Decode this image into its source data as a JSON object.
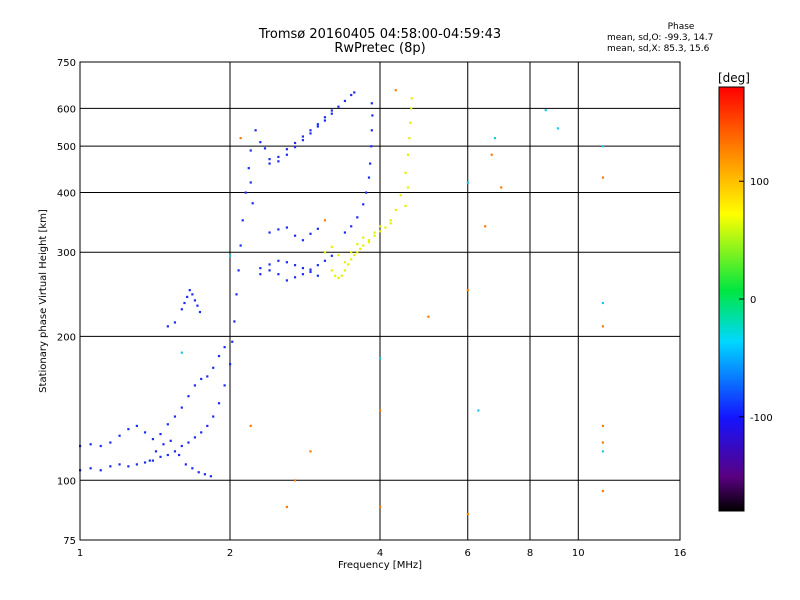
{
  "header": {
    "title": "Tromsø 20160405 04:58:00-04:59:43",
    "subtitle": "RwPretec (8p)",
    "phase_label": "Phase",
    "phase_o": "mean, sd,O: -99.3, 14.7",
    "phase_x": "mean, sd,X:  85.3, 15.6"
  },
  "chart_data": {
    "type": "scatter",
    "xlabel": "Frequency [MHz]",
    "ylabel": "Stationary phase Virtual Height [km]",
    "xscale": "log",
    "yscale": "log",
    "xlim": [
      1,
      16
    ],
    "ylim": [
      75,
      750
    ],
    "xticks": [
      1,
      2,
      4,
      6,
      8,
      10,
      16
    ],
    "xtick_labels": [
      "1",
      "2",
      "4",
      "6",
      "8",
      "10",
      "16"
    ],
    "yticks": [
      75,
      100,
      200,
      300,
      400,
      500,
      600,
      750
    ],
    "ytick_labels": [
      "75",
      "100",
      "200",
      "300",
      "400",
      "500",
      "600",
      "750"
    ],
    "grid": true,
    "colorbar": {
      "label": "[deg]",
      "range": [
        -180,
        180
      ],
      "ticks": [
        -100,
        0,
        100
      ],
      "tick_labels": [
        "-100",
        "0",
        "100"
      ]
    },
    "series": [
      {
        "mode": "O",
        "color": "#1a2cf0",
        "points": [
          [
            1.0,
            105
          ],
          [
            1.05,
            106
          ],
          [
            1.1,
            105
          ],
          [
            1.15,
            107
          ],
          [
            1.2,
            108
          ],
          [
            1.25,
            107
          ],
          [
            1.3,
            108
          ],
          [
            1.35,
            109
          ],
          [
            1.4,
            110
          ],
          [
            1.45,
            112
          ],
          [
            1.5,
            113
          ],
          [
            1.55,
            115
          ],
          [
            1.6,
            118
          ],
          [
            1.65,
            120
          ],
          [
            1.7,
            123
          ],
          [
            1.75,
            126
          ],
          [
            1.8,
            130
          ],
          [
            1.85,
            136
          ],
          [
            1.9,
            145
          ],
          [
            1.95,
            158
          ],
          [
            2.0,
            175
          ],
          [
            2.02,
            195
          ],
          [
            2.04,
            215
          ],
          [
            2.06,
            245
          ],
          [
            2.08,
            275
          ],
          [
            2.1,
            310
          ],
          [
            2.12,
            350
          ],
          [
            2.15,
            400
          ],
          [
            2.18,
            450
          ],
          [
            2.2,
            490
          ],
          [
            1.0,
            118
          ],
          [
            1.05,
            119
          ],
          [
            1.1,
            118
          ],
          [
            1.15,
            120
          ],
          [
            1.2,
            124
          ],
          [
            1.25,
            128
          ],
          [
            1.3,
            130
          ],
          [
            1.35,
            126
          ],
          [
            1.4,
            122
          ],
          [
            1.45,
            125
          ],
          [
            1.5,
            131
          ],
          [
            1.55,
            136
          ],
          [
            1.6,
            142
          ],
          [
            1.65,
            150
          ],
          [
            1.7,
            158
          ],
          [
            1.75,
            163
          ],
          [
            1.8,
            165
          ],
          [
            1.85,
            172
          ],
          [
            1.9,
            182
          ],
          [
            1.95,
            190
          ],
          [
            1.6,
            228
          ],
          [
            1.62,
            235
          ],
          [
            1.64,
            242
          ],
          [
            1.66,
            250
          ],
          [
            1.68,
            245
          ],
          [
            1.7,
            238
          ],
          [
            1.72,
            232
          ],
          [
            1.74,
            225
          ],
          [
            1.5,
            210
          ],
          [
            1.55,
            214
          ],
          [
            1.38,
            110
          ],
          [
            1.42,
            115
          ],
          [
            1.47,
            119
          ],
          [
            1.52,
            121
          ],
          [
            1.58,
            113
          ],
          [
            1.63,
            108
          ],
          [
            1.68,
            106
          ],
          [
            1.73,
            104
          ],
          [
            1.78,
            103
          ],
          [
            1.83,
            102
          ],
          [
            2.3,
            270
          ],
          [
            2.4,
            275
          ],
          [
            2.5,
            270
          ],
          [
            2.6,
            262
          ],
          [
            2.7,
            266
          ],
          [
            2.8,
            270
          ],
          [
            2.9,
            276
          ],
          [
            3.0,
            282
          ],
          [
            3.1,
            288
          ],
          [
            3.2,
            295
          ],
          [
            2.3,
            278
          ],
          [
            2.4,
            283
          ],
          [
            2.5,
            288
          ],
          [
            2.6,
            286
          ],
          [
            2.7,
            282
          ],
          [
            2.8,
            278
          ],
          [
            2.9,
            273
          ],
          [
            3.0,
            268
          ],
          [
            2.5,
            465
          ],
          [
            2.6,
            480
          ],
          [
            2.7,
            498
          ],
          [
            2.8,
            515
          ],
          [
            2.9,
            532
          ],
          [
            3.0,
            550
          ],
          [
            3.1,
            566
          ],
          [
            3.2,
            585
          ],
          [
            3.3,
            605
          ],
          [
            3.4,
            622
          ],
          [
            3.5,
            640
          ],
          [
            3.55,
            648
          ],
          [
            2.4,
            460
          ],
          [
            2.5,
            475
          ],
          [
            2.6,
            493
          ],
          [
            2.7,
            508
          ],
          [
            2.8,
            524
          ],
          [
            2.9,
            540
          ],
          [
            3.0,
            556
          ],
          [
            3.1,
            575
          ],
          [
            3.2,
            594
          ],
          [
            3.4,
            330
          ],
          [
            3.5,
            340
          ],
          [
            3.6,
            355
          ],
          [
            3.7,
            378
          ],
          [
            3.75,
            400
          ],
          [
            3.8,
            430
          ],
          [
            3.82,
            460
          ],
          [
            3.84,
            500
          ],
          [
            3.85,
            540
          ],
          [
            3.86,
            580
          ],
          [
            3.85,
            615
          ],
          [
            2.4,
            330
          ],
          [
            2.5,
            335
          ],
          [
            2.6,
            338
          ],
          [
            2.7,
            325
          ],
          [
            2.8,
            318
          ],
          [
            2.9,
            328
          ],
          [
            3.0,
            336
          ],
          [
            2.25,
            540
          ],
          [
            2.3,
            510
          ],
          [
            2.35,
            495
          ],
          [
            2.4,
            470
          ],
          [
            2.2,
            420
          ],
          [
            2.22,
            380
          ]
        ]
      },
      {
        "mode": "X",
        "color": "#e6f000",
        "points": [
          [
            3.2,
            275
          ],
          [
            3.25,
            268
          ],
          [
            3.3,
            265
          ],
          [
            3.35,
            268
          ],
          [
            3.4,
            275
          ],
          [
            3.45,
            283
          ],
          [
            3.5,
            290
          ],
          [
            3.55,
            296
          ],
          [
            3.6,
            300
          ],
          [
            3.65,
            305
          ],
          [
            3.7,
            310
          ],
          [
            3.8,
            318
          ],
          [
            3.9,
            325
          ],
          [
            4.0,
            332
          ],
          [
            4.1,
            338
          ],
          [
            4.2,
            350
          ],
          [
            4.3,
            368
          ],
          [
            4.4,
            395
          ],
          [
            4.5,
            440
          ],
          [
            4.55,
            480
          ],
          [
            4.58,
            520
          ],
          [
            4.6,
            560
          ],
          [
            4.62,
            600
          ],
          [
            4.63,
            630
          ],
          [
            3.1,
            300
          ],
          [
            3.2,
            308
          ],
          [
            3.3,
            296
          ],
          [
            3.4,
            286
          ],
          [
            3.5,
            300
          ],
          [
            3.6,
            312
          ],
          [
            3.7,
            322
          ],
          [
            3.8,
            315
          ],
          [
            3.9,
            330
          ],
          [
            4.0,
            340
          ],
          [
            4.2,
            345
          ],
          [
            4.5,
            375
          ],
          [
            4.55,
            410
          ]
        ]
      },
      {
        "mode": "scattered",
        "color": "#ff7a00",
        "points": [
          [
            4.0,
            140
          ],
          [
            4.0,
            88
          ],
          [
            4.3,
            655
          ],
          [
            5.0,
            220
          ],
          [
            6.0,
            250
          ],
          [
            6.0,
            85
          ],
          [
            6.5,
            340
          ],
          [
            6.7,
            480
          ],
          [
            7.0,
            410
          ],
          [
            11.2,
            430
          ],
          [
            11.2,
            210
          ],
          [
            11.2,
            130
          ],
          [
            11.2,
            120
          ],
          [
            11.2,
            95
          ],
          [
            3.1,
            350
          ],
          [
            2.1,
            520
          ],
          [
            2.6,
            88
          ],
          [
            2.7,
            100
          ],
          [
            2.9,
            115
          ],
          [
            2.2,
            130
          ]
        ]
      },
      {
        "mode": "scattered-cyan",
        "color": "#19c8e6",
        "points": [
          [
            1.6,
            185
          ],
          [
            2.0,
            295
          ],
          [
            4.0,
            180
          ],
          [
            6.0,
            420
          ],
          [
            6.3,
            140
          ],
          [
            6.8,
            520
          ],
          [
            8.6,
            595
          ],
          [
            9.1,
            545
          ],
          [
            11.2,
            500
          ],
          [
            11.2,
            235
          ],
          [
            11.2,
            115
          ]
        ]
      }
    ]
  }
}
